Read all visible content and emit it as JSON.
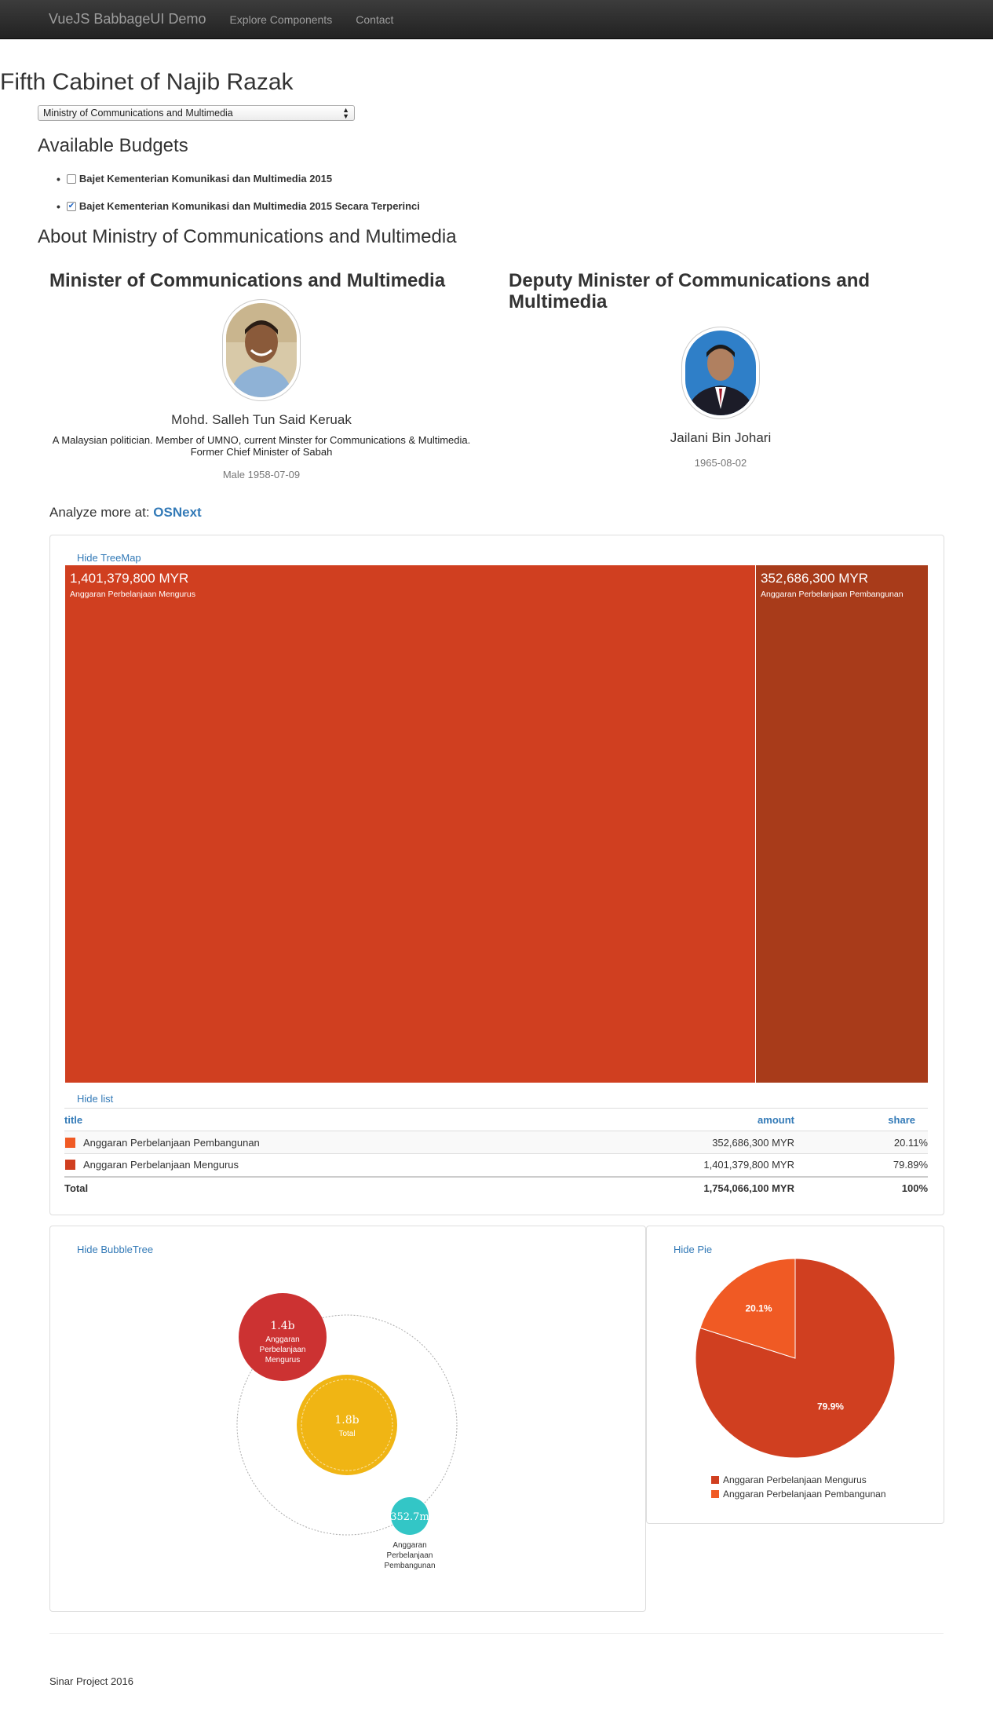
{
  "navbar": {
    "brand": "VueJS BabbageUI Demo",
    "links": [
      "Explore Components",
      "Contact"
    ]
  },
  "page_title": "Fifth Cabinet of Najib Razak",
  "ministry_select": {
    "selected": "Ministry of Communications and Multimedia"
  },
  "budgets": {
    "heading": "Available Budgets",
    "items": [
      {
        "label": "Bajet Kementerian Komunikasi dan Multimedia 2015",
        "checked": false
      },
      {
        "label": "Bajet Kementerian Komunikasi dan Multimedia 2015 Secara Terperinci",
        "checked": true
      }
    ]
  },
  "about": {
    "heading": "About Ministry of Communications and Multimedia",
    "minister": {
      "role": "Minister of Communications and Multimedia",
      "name": "Mohd. Salleh Tun Said Keruak",
      "description": "A Malaysian politician. Member of UMNO, current Minster for Communications & Multimedia. Former Chief Minister of Sabah",
      "meta": "Male 1958-07-09"
    },
    "deputy": {
      "role": "Deputy Minister of Communications and Multimedia",
      "name": "Jailani Bin Johari",
      "meta": "1965-08-02"
    }
  },
  "analyze": {
    "prefix": "Analyze more at:",
    "link": "OSNext"
  },
  "treemap": {
    "toggle": "Hide TreeMap",
    "list_toggle": "Hide list"
  },
  "table": {
    "headers": {
      "title": "title",
      "amount": "amount",
      "share": "share"
    },
    "rows": [
      {
        "title": "Anggaran Perbelanjaan Pembangunan",
        "amount": "352,686,300 MYR",
        "share": "20.11%",
        "color": "#f05a24"
      },
      {
        "title": "Anggaran Perbelanjaan Mengurus",
        "amount": "1,401,379,800 MYR",
        "share": "79.89%",
        "color": "#d03f20"
      }
    ],
    "total": {
      "title": "Total",
      "amount": "1,754,066,100 MYR",
      "share": "100%"
    }
  },
  "bubbletree": {
    "toggle": "Hide BubbleTree",
    "center": {
      "value": "1.8b",
      "label": "Total",
      "color": "#f0b514"
    },
    "nodes": [
      {
        "value": "1.4b",
        "label": "Anggaran Perbelanjaan Mengurus",
        "color": "#cc3232"
      },
      {
        "value": "352.7m",
        "label": "Anggaran Perbelanjaan Pembangunan",
        "color": "#33c6c6"
      }
    ]
  },
  "pie": {
    "toggle": "Hide Pie",
    "legend": [
      {
        "label": "Anggaran Perbelanjaan Mengurus",
        "color": "#d03f20"
      },
      {
        "label": "Anggaran Perbelanjaan Pembangunan",
        "color": "#f05a24"
      }
    ]
  },
  "chart_data": [
    {
      "type": "treemap",
      "title": "",
      "categories": [
        "Anggaran Perbelanjaan Mengurus",
        "Anggaran Perbelanjaan Pembangunan"
      ],
      "values": [
        1401379800,
        352686300
      ],
      "value_labels": [
        "1,401,379,800 MYR",
        "352,686,300 MYR"
      ],
      "colors": [
        "#d03f20",
        "#a83b1a"
      ]
    },
    {
      "type": "pie",
      "categories": [
        "Anggaran Perbelanjaan Mengurus",
        "Anggaran Perbelanjaan Pembangunan"
      ],
      "values": [
        79.9,
        20.1
      ],
      "value_labels": [
        "79.9%",
        "20.1%"
      ],
      "colors": [
        "#d03f20",
        "#f05a24"
      ]
    }
  ],
  "footer": "Sinar Project 2016"
}
